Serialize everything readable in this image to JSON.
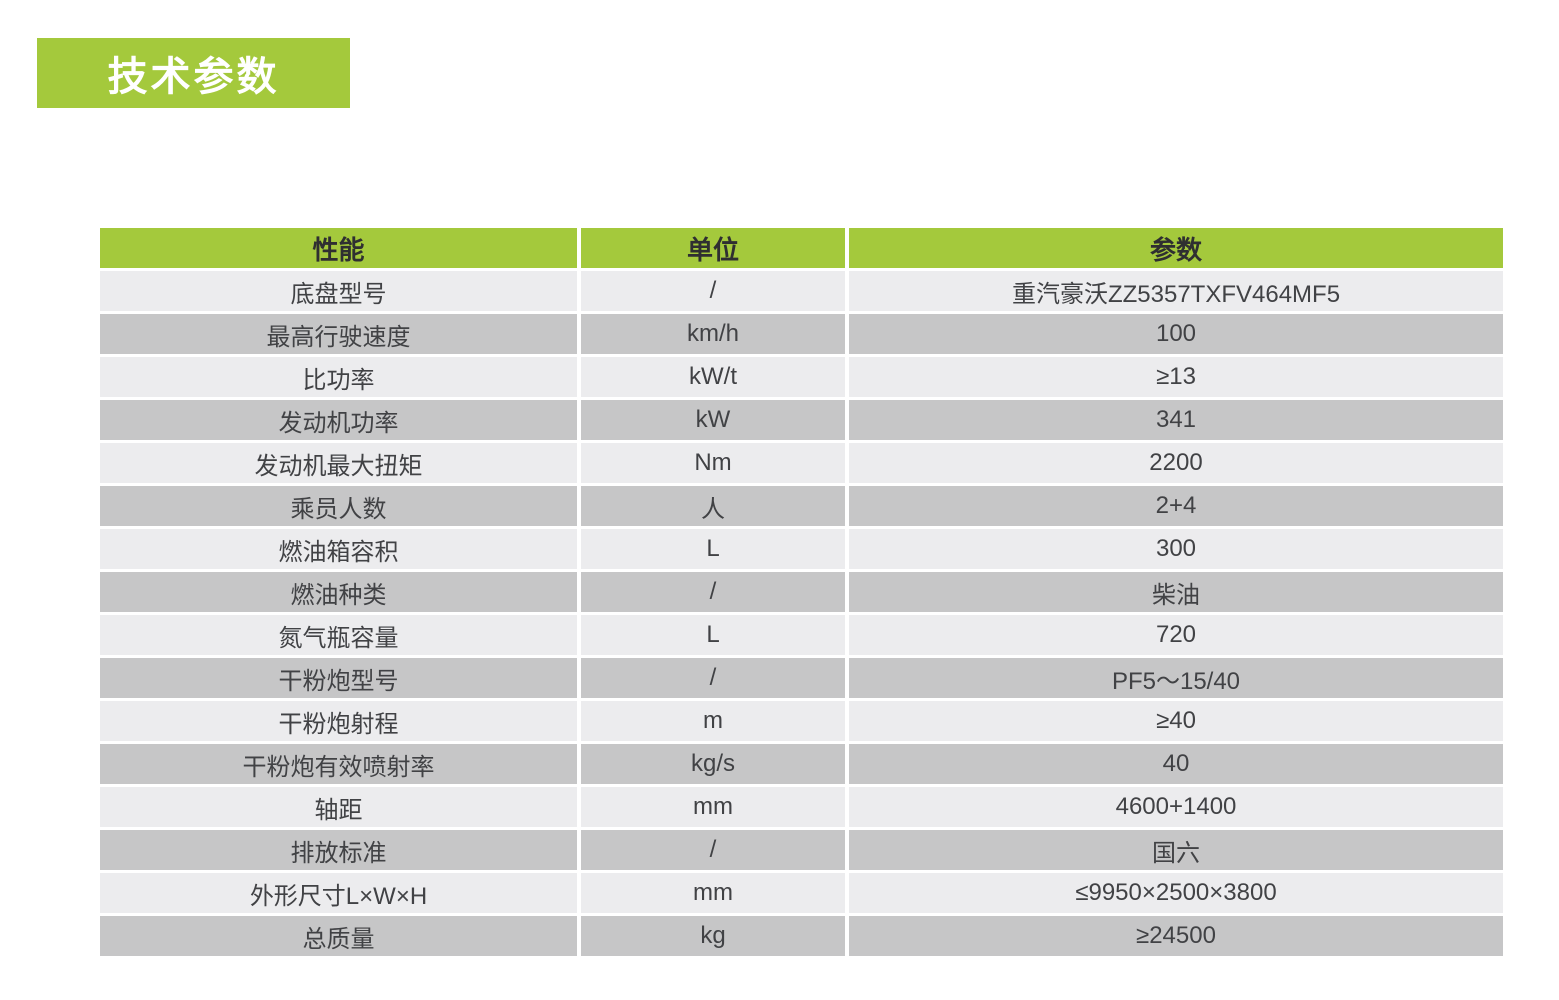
{
  "section": {
    "title": "技术参数"
  },
  "colors": {
    "green": "#a4c93c",
    "row_light": "#ececee",
    "row_dark": "#c6c6c7",
    "header_text": "#2f2f31",
    "body_text": "#414245",
    "badge_text": "#ffffff",
    "page_bg": "#ffffff"
  },
  "table": {
    "headers": [
      "性能",
      "单位",
      "参数"
    ],
    "rows": [
      {
        "name": "底盘型号",
        "unit": "/",
        "value": "重汽豪沃ZZ5357TXFV464MF5"
      },
      {
        "name": "最高行驶速度",
        "unit": "km/h",
        "value": "100"
      },
      {
        "name": "比功率",
        "unit": "kW/t",
        "value": "≥13"
      },
      {
        "name": "发动机功率",
        "unit": "kW",
        "value": "341"
      },
      {
        "name": "发动机最大扭矩",
        "unit": "Nm",
        "value": "2200"
      },
      {
        "name": "乘员人数",
        "unit": "人",
        "value": "2+4"
      },
      {
        "name": "燃油箱容积",
        "unit": "L",
        "value": "300"
      },
      {
        "name": "燃油种类",
        "unit": "/",
        "value": "柴油"
      },
      {
        "name": "氮气瓶容量",
        "unit": "L",
        "value": "720"
      },
      {
        "name": "干粉炮型号",
        "unit": "/",
        "value": "PF5～15/40"
      },
      {
        "name": "干粉炮射程",
        "unit": "m",
        "value": "≥40"
      },
      {
        "name": "干粉炮有效喷射率",
        "unit": "kg/s",
        "value": "40"
      },
      {
        "name": "轴距",
        "unit": "mm",
        "value": "4600+1400"
      },
      {
        "name": "排放标准",
        "unit": "/",
        "value": "国六"
      },
      {
        "name": "外形尺寸L×W×H",
        "unit": "mm",
        "value": "≤9950×2500×3800"
      },
      {
        "name": "总质量",
        "unit": "kg",
        "value": "≥24500"
      }
    ]
  }
}
